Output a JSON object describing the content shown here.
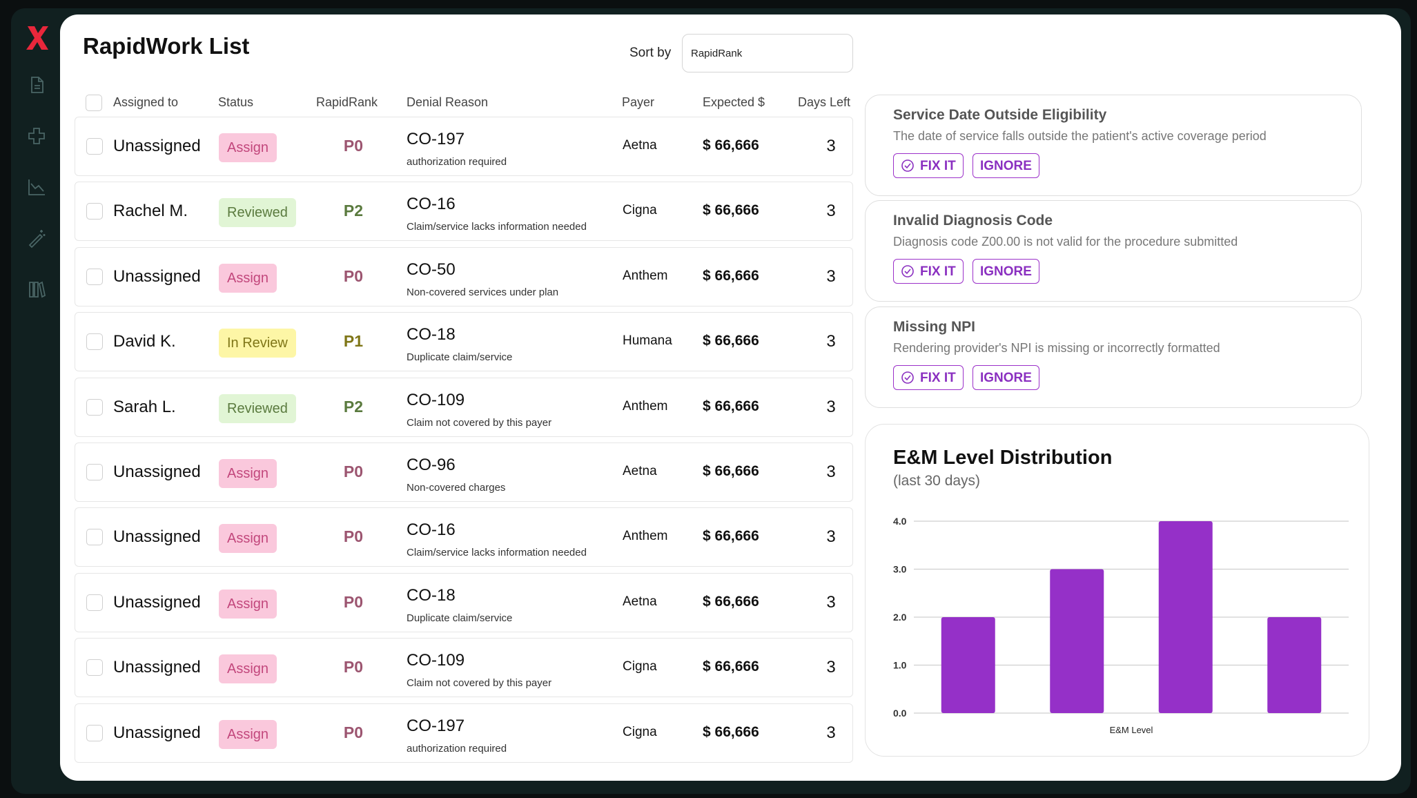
{
  "app": {
    "title": "RapidWork List"
  },
  "sort": {
    "label": "Sort by",
    "value": "RapidRank"
  },
  "sidebar": {
    "icons": [
      "document-icon",
      "medical-cross-icon",
      "chart-down-icon",
      "magic-wand-icon",
      "library-icon"
    ]
  },
  "table": {
    "headers": {
      "assigned_to": "Assigned to",
      "status": "Status",
      "rank": "RapidRank",
      "denial_reason": "Denial Reason",
      "payer": "Payer",
      "expected": "Expected $",
      "days_left": "Days Left"
    },
    "rows": [
      {
        "assignee": "Unassigned",
        "status": "Assign",
        "status_type": "assign",
        "rank": "P0",
        "code": "CO-197",
        "desc": "authorization required",
        "payer": "Aetna",
        "expected": "$ 66,666",
        "days": "3"
      },
      {
        "assignee": "Rachel M.",
        "status": "Reviewed",
        "status_type": "reviewed",
        "rank": "P2",
        "code": "CO-16",
        "desc": "Claim/service lacks information needed",
        "payer": "Cigna",
        "expected": "$ 66,666",
        "days": "3"
      },
      {
        "assignee": "Unassigned",
        "status": "Assign",
        "status_type": "assign",
        "rank": "P0",
        "code": "CO-50",
        "desc": "Non-covered services under plan",
        "payer": "Anthem",
        "expected": "$ 66,666",
        "days": "3"
      },
      {
        "assignee": "David K.",
        "status": "In Review",
        "status_type": "inreview",
        "rank": "P1",
        "code": "CO-18",
        "desc": "Duplicate claim/service",
        "payer": "Humana",
        "expected": "$ 66,666",
        "days": "3"
      },
      {
        "assignee": "Sarah L.",
        "status": "Reviewed",
        "status_type": "reviewed",
        "rank": "P2",
        "code": "CO-109",
        "desc": "Claim not covered by this payer",
        "payer": "Anthem",
        "expected": "$ 66,666",
        "days": "3"
      },
      {
        "assignee": "Unassigned",
        "status": "Assign",
        "status_type": "assign",
        "rank": "P0",
        "code": "CO-96",
        "desc": "Non-covered charges",
        "payer": "Aetna",
        "expected": "$ 66,666",
        "days": "3"
      },
      {
        "assignee": "Unassigned",
        "status": "Assign",
        "status_type": "assign",
        "rank": "P0",
        "code": "CO-16",
        "desc": "Claim/service lacks information needed",
        "payer": "Anthem",
        "expected": "$ 66,666",
        "days": "3"
      },
      {
        "assignee": "Unassigned",
        "status": "Assign",
        "status_type": "assign",
        "rank": "P0",
        "code": "CO-18",
        "desc": "Duplicate claim/service",
        "payer": "Aetna",
        "expected": "$ 66,666",
        "days": "3"
      },
      {
        "assignee": "Unassigned",
        "status": "Assign",
        "status_type": "assign",
        "rank": "P0",
        "code": "CO-109",
        "desc": "Claim not covered by this payer",
        "payer": "Cigna",
        "expected": "$ 66,666",
        "days": "3"
      },
      {
        "assignee": "Unassigned",
        "status": "Assign",
        "status_type": "assign",
        "rank": "P0",
        "code": "CO-197",
        "desc": "authorization required",
        "payer": "Cigna",
        "expected": "$ 66,666",
        "days": "3"
      }
    ]
  },
  "issues": [
    {
      "title": "Service Date Outside Eligibility",
      "desc": "The date of service falls outside the patient's active coverage period",
      "fix_label": "FIX IT",
      "ignore_label": "IGNORE"
    },
    {
      "title": "Invalid Diagnosis Code",
      "desc": "Diagnosis code Z00.00 is not valid for the procedure submitted",
      "fix_label": "FIX IT",
      "ignore_label": "IGNORE"
    },
    {
      "title": "Missing NPI",
      "desc": "Rendering provider's NPI is missing or incorrectly formatted",
      "fix_label": "FIX IT",
      "ignore_label": "IGNORE"
    }
  ],
  "chart_data": {
    "type": "bar",
    "title": "E&M Level Distribution",
    "subtitle": "(last 30 days)",
    "xlabel": "E&M Level",
    "ylabel": "",
    "categories": [
      "",
      "",
      "",
      ""
    ],
    "values": [
      2,
      3,
      4,
      2
    ],
    "ylim": [
      0,
      4
    ],
    "yticks": [
      "0.0",
      "1.0",
      "2.0",
      "3.0",
      "4.0"
    ],
    "grid": true,
    "bar_color": "#9530c8"
  },
  "colors": {
    "accent": "#9530c8",
    "assign_bg": "#fac8dc",
    "reviewed_bg": "#e1f5d5",
    "inreview_bg": "#fdf6a6",
    "logo": "#e8273b"
  }
}
